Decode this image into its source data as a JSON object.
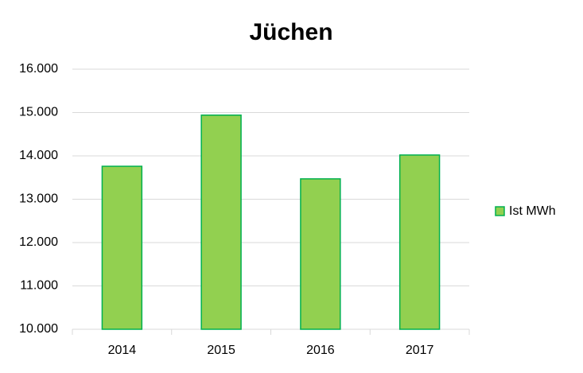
{
  "chart_data": {
    "type": "bar",
    "title": "Jüchen",
    "categories": [
      "2014",
      "2015",
      "2016",
      "2017"
    ],
    "series": [
      {
        "name": "Ist MWh",
        "color": "#92d050",
        "edge_color": "#00b050",
        "values": [
          13760,
          14940,
          13470,
          14020
        ]
      }
    ],
    "ylim": [
      10000,
      16000
    ],
    "yticks": [
      {
        "value": 10000,
        "label": "10.000"
      },
      {
        "value": 11000,
        "label": "11.000"
      },
      {
        "value": 12000,
        "label": "12.000"
      },
      {
        "value": 13000,
        "label": "13.000"
      },
      {
        "value": 14000,
        "label": "14.000"
      },
      {
        "value": 15000,
        "label": "15.000"
      },
      {
        "value": 16000,
        "label": "16.000"
      }
    ],
    "grid": true,
    "legend": "right"
  }
}
